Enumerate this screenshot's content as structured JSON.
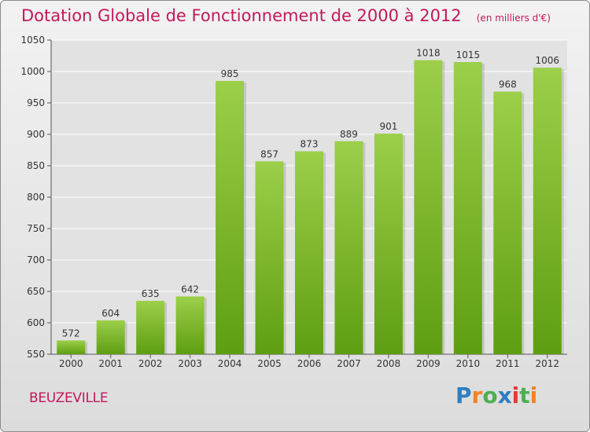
{
  "title": "Dotation Globale de Fonctionnement de 2000 à 2012",
  "unit_note": "(en milliers d'€)",
  "commune": "BEUZEVILLE",
  "brand": {
    "letters": [
      "P",
      "r",
      "o",
      "x",
      "i",
      "t",
      "i"
    ],
    "colors": [
      "#2f7fc1",
      "#f58220",
      "#4caf50",
      "#2f7fc1",
      "#e53935",
      "#4caf50",
      "#f58220"
    ]
  },
  "colors": {
    "title": "#c2185b",
    "bar_top": "#9ccf4a",
    "bar_bottom": "#5e9e12"
  },
  "chart_data": {
    "type": "bar",
    "categories": [
      "2000",
      "2001",
      "2002",
      "2003",
      "2004",
      "2005",
      "2006",
      "2007",
      "2008",
      "2009",
      "2010",
      "2011",
      "2012"
    ],
    "values": [
      572,
      604,
      635,
      642,
      985,
      857,
      873,
      889,
      901,
      1018,
      1015,
      968,
      1006
    ],
    "ylim": [
      550,
      1050
    ],
    "yticks": [
      550,
      600,
      650,
      700,
      750,
      800,
      850,
      900,
      950,
      1000,
      1050
    ],
    "grid": true,
    "xlabel": "",
    "ylabel": ""
  }
}
